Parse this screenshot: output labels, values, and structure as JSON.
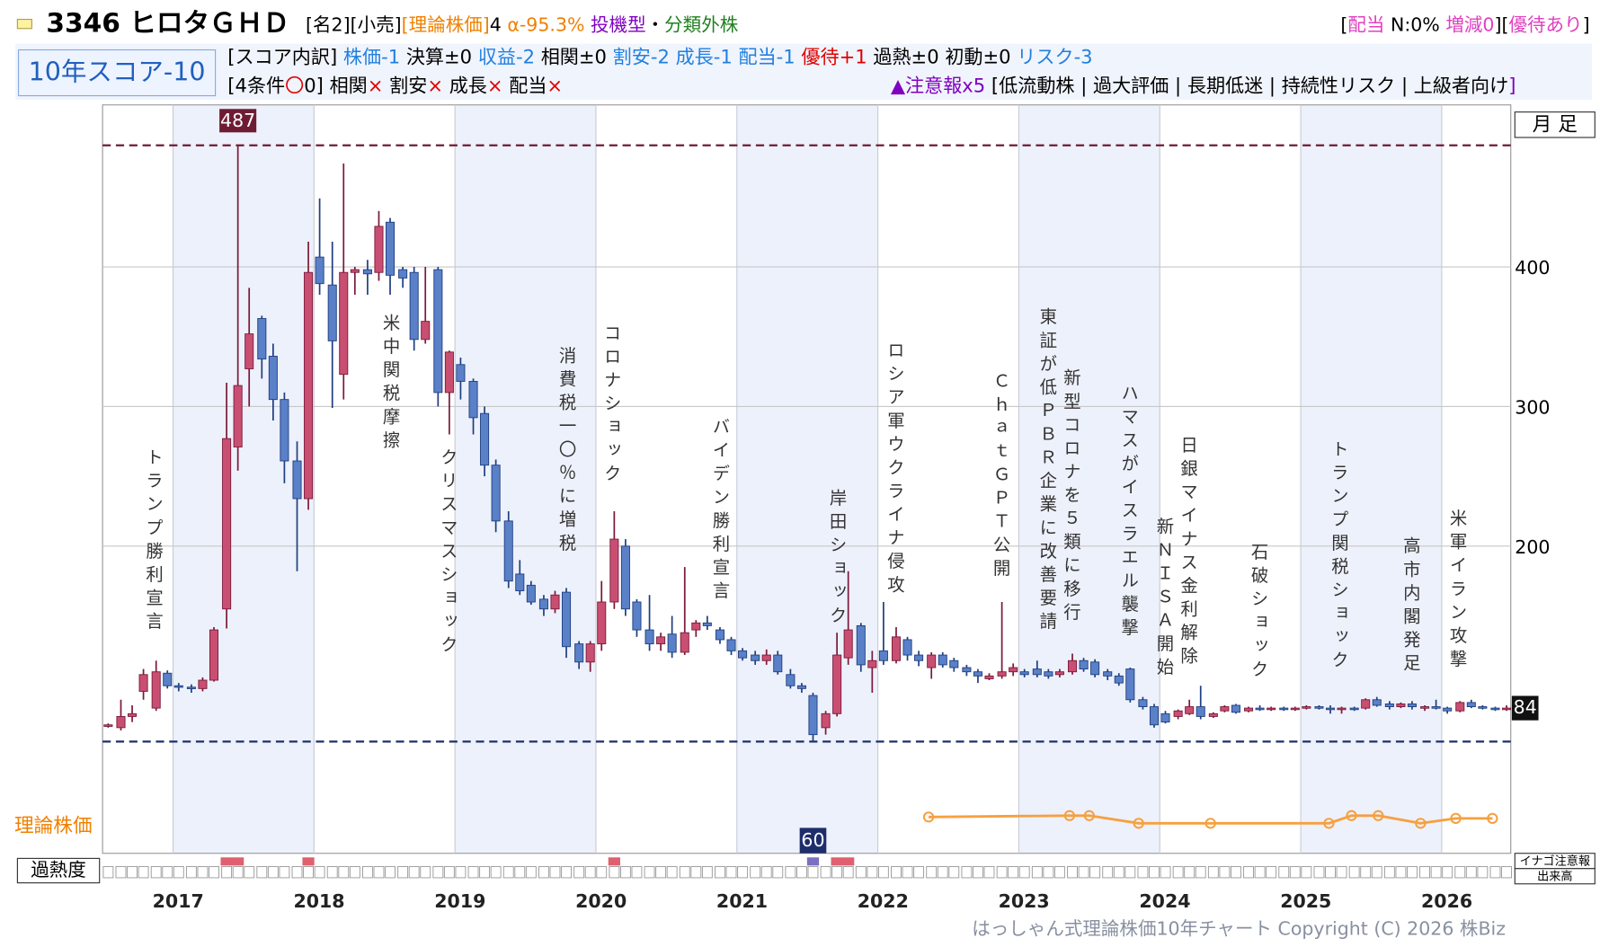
{
  "header": {
    "code_name": "3346 ヒロタＧＨＤ",
    "line1": [
      {
        "text": "[名2][小売]",
        "color": "#000000"
      },
      {
        "text": "[理論株価]",
        "color": "#f08000"
      },
      {
        "text": "4 ",
        "color": "#000000"
      },
      {
        "text": "α-95.3% ",
        "color": "#f08000"
      },
      {
        "text": "投機型",
        "color": "#8000c0"
      },
      {
        "text": "・",
        "color": "#000000"
      },
      {
        "text": "分類外株",
        "color": "#208020"
      }
    ],
    "right": [
      {
        "text": "[",
        "color": "#000000"
      },
      {
        "text": "配当",
        "color": "#e040c0"
      },
      {
        "text": " N:0% ",
        "color": "#000000"
      },
      {
        "text": "増減0",
        "color": "#e040c0"
      },
      {
        "text": "][",
        "color": "#000000"
      },
      {
        "text": "優待あり",
        "color": "#e040c0"
      },
      {
        "text": "]",
        "color": "#000000"
      }
    ],
    "score": "10年スコア-10",
    "breakdown": [
      {
        "text": "[スコア内訳] ",
        "color": "#000000"
      },
      {
        "text": "株価-1 ",
        "color": "#2080e0"
      },
      {
        "text": "決算±0 ",
        "color": "#000000"
      },
      {
        "text": "収益-2 ",
        "color": "#2080e0"
      },
      {
        "text": "相関±0 ",
        "color": "#000000"
      },
      {
        "text": "割安-2 ",
        "color": "#2080e0"
      },
      {
        "text": "成長-1 ",
        "color": "#2080e0"
      },
      {
        "text": "配当-1 ",
        "color": "#2080e0"
      },
      {
        "text": "優待+1 ",
        "color": "#e00000"
      },
      {
        "text": "過熱±0 ",
        "color": "#000000"
      },
      {
        "text": "初動±0 ",
        "color": "#000000"
      },
      {
        "text": "リスク-3",
        "color": "#2080e0"
      }
    ],
    "conditions": [
      {
        "text": "[4条件",
        "color": "#000000"
      },
      {
        "text": "〇",
        "color": "#e00000"
      },
      {
        "text": "0] 相関",
        "color": "#000000"
      },
      {
        "text": "×",
        "color": "#e00000"
      },
      {
        "text": " 割安",
        "color": "#000000"
      },
      {
        "text": "×",
        "color": "#e00000"
      },
      {
        "text": " 成長",
        "color": "#000000"
      },
      {
        "text": "×",
        "color": "#e00000"
      },
      {
        "text": " 配当",
        "color": "#000000"
      },
      {
        "text": "×",
        "color": "#e00000"
      }
    ],
    "alerts": [
      {
        "text": "▲注意報x5",
        "color": "#8000c0"
      },
      {
        "text": " [低流動株 | 過大評価 | 長期低迷 | 持続性リスク | 上級者向け",
        "color": "#000000"
      },
      {
        "text": "]",
        "color": "#8000c0"
      }
    ],
    "copyright": "はっしゃん式理論株価10年チャート Copyright (C) 2026 株Biz"
  },
  "chart_data": {
    "type": "candlestick",
    "period_label": "月 足",
    "xlim": [
      2016.5,
      2026.49
    ],
    "xticks": [
      2017,
      2018,
      2019,
      2020,
      2021,
      2022,
      2023,
      2024,
      2025,
      2026
    ],
    "ylim": [
      -20,
      516
    ],
    "yticks": [
      200,
      300,
      400
    ],
    "grid": true,
    "up_color": "#c94f72",
    "down_color": "#5a80c8",
    "max": 487,
    "min": 60,
    "last": 84,
    "max_color": "#6e1c34",
    "min_color": "#1e2e6c",
    "candles": {
      "x": [
        2016.54,
        2016.63,
        2016.71,
        2016.79,
        2016.88,
        2016.96,
        2017.04,
        2017.13,
        2017.21,
        2017.29,
        2017.38,
        2017.46,
        2017.54,
        2017.63,
        2017.71,
        2017.79,
        2017.88,
        2017.96,
        2018.04,
        2018.13,
        2018.21,
        2018.29,
        2018.38,
        2018.46,
        2018.54,
        2018.63,
        2018.71,
        2018.79,
        2018.88,
        2018.96,
        2019.04,
        2019.13,
        2019.21,
        2019.29,
        2019.38,
        2019.46,
        2019.54,
        2019.63,
        2019.71,
        2019.79,
        2019.88,
        2019.96,
        2020.04,
        2020.13,
        2020.21,
        2020.29,
        2020.38,
        2020.46,
        2020.54,
        2020.63,
        2020.71,
        2020.79,
        2020.88,
        2020.96,
        2021.04,
        2021.13,
        2021.21,
        2021.29,
        2021.38,
        2021.46,
        2021.54,
        2021.63,
        2021.71,
        2021.79,
        2021.88,
        2021.96,
        2022.04,
        2022.13,
        2022.21,
        2022.29,
        2022.38,
        2022.46,
        2022.54,
        2022.63,
        2022.71,
        2022.79,
        2022.88,
        2022.96,
        2023.04,
        2023.13,
        2023.21,
        2023.29,
        2023.38,
        2023.46,
        2023.54,
        2023.63,
        2023.71,
        2023.79,
        2023.88,
        2023.96,
        2024.04,
        2024.13,
        2024.21,
        2024.29,
        2024.38,
        2024.46,
        2024.54,
        2024.63,
        2024.71,
        2024.79,
        2024.88,
        2024.96,
        2025.04,
        2025.13,
        2025.21,
        2025.29,
        2025.38,
        2025.46,
        2025.54,
        2025.63,
        2025.71,
        2025.79,
        2025.88,
        2025.96,
        2026.04,
        2026.13,
        2026.21,
        2026.29,
        2026.38,
        2026.46
      ],
      "ohlc": [
        [
          71,
          73,
          70,
          72
        ],
        [
          70,
          90,
          68,
          78
        ],
        [
          78,
          86,
          74,
          80
        ],
        [
          96,
          112,
          90,
          108
        ],
        [
          84,
          118,
          82,
          110
        ],
        [
          109,
          111,
          98,
          100
        ],
        [
          100,
          102,
          96,
          99
        ],
        [
          99,
          101,
          95,
          98
        ],
        [
          98,
          106,
          96,
          104
        ],
        [
          104,
          142,
          103,
          140
        ],
        [
          155,
          317,
          141,
          277
        ],
        [
          271,
          487,
          254,
          315
        ],
        [
          327,
          385,
          300,
          352
        ],
        [
          363,
          365,
          320,
          334
        ],
        [
          336,
          345,
          290,
          305
        ],
        [
          305,
          310,
          245,
          261
        ],
        [
          261,
          275,
          182,
          234
        ],
        [
          234,
          418,
          226,
          396
        ],
        [
          407,
          449,
          380,
          388
        ],
        [
          387,
          418,
          299,
          347
        ],
        [
          323,
          474,
          305,
          396
        ],
        [
          396,
          400,
          380,
          398
        ],
        [
          398,
          405,
          380,
          395
        ],
        [
          396,
          440,
          390,
          429
        ],
        [
          432,
          435,
          380,
          394
        ],
        [
          398,
          400,
          385,
          392
        ],
        [
          396,
          400,
          340,
          348
        ],
        [
          348,
          400,
          345,
          361
        ],
        [
          398,
          400,
          300,
          310
        ],
        [
          310,
          340,
          280,
          339
        ],
        [
          330,
          335,
          305,
          318
        ],
        [
          318,
          320,
          280,
          292
        ],
        [
          295,
          300,
          250,
          258
        ],
        [
          258,
          262,
          210,
          218
        ],
        [
          218,
          225,
          170,
          175
        ],
        [
          180,
          190,
          165,
          168
        ],
        [
          172,
          175,
          158,
          160
        ],
        [
          162,
          165,
          150,
          155
        ],
        [
          155,
          168,
          152,
          165
        ],
        [
          167,
          170,
          120,
          128
        ],
        [
          130,
          132,
          112,
          117
        ],
        [
          117,
          132,
          110,
          130
        ],
        [
          130,
          175,
          125,
          160
        ],
        [
          160,
          225,
          155,
          205
        ],
        [
          200,
          205,
          150,
          155
        ],
        [
          160,
          162,
          135,
          140
        ],
        [
          140,
          165,
          125,
          130
        ],
        [
          130,
          138,
          125,
          135
        ],
        [
          137,
          150,
          120,
          124
        ],
        [
          124,
          185,
          122,
          138
        ],
        [
          140,
          147,
          135,
          145
        ],
        [
          145,
          150,
          140,
          143
        ],
        [
          140,
          142,
          130,
          133
        ],
        [
          133,
          135,
          122,
          125
        ],
        [
          125,
          127,
          118,
          120
        ],
        [
          122,
          125,
          115,
          118
        ],
        [
          118,
          126,
          115,
          122
        ],
        [
          122,
          125,
          108,
          110
        ],
        [
          108,
          112,
          98,
          100
        ],
        [
          100,
          102,
          95,
          98
        ],
        [
          93,
          95,
          60,
          65
        ],
        [
          70,
          82,
          65,
          80
        ],
        [
          80,
          138,
          78,
          122
        ],
        [
          120,
          182,
          115,
          140
        ],
        [
          143,
          145,
          110,
          115
        ],
        [
          113,
          125,
          95,
          118
        ],
        [
          125,
          160,
          115,
          118
        ],
        [
          118,
          142,
          116,
          135
        ],
        [
          133,
          135,
          118,
          122
        ],
        [
          122,
          125,
          114,
          118
        ],
        [
          113,
          124,
          105,
          122
        ],
        [
          122,
          124,
          113,
          115
        ],
        [
          118,
          120,
          110,
          113
        ],
        [
          113,
          115,
          107,
          110
        ],
        [
          110,
          112,
          102,
          107
        ],
        [
          105,
          109,
          104,
          107
        ],
        [
          107,
          160,
          105,
          110
        ],
        [
          110,
          116,
          107,
          113
        ],
        [
          110,
          112,
          106,
          108
        ],
        [
          112,
          118,
          106,
          108
        ],
        [
          110,
          112,
          105,
          107
        ],
        [
          108,
          112,
          106,
          110
        ],
        [
          110,
          123,
          108,
          118
        ],
        [
          118,
          120,
          110,
          112
        ],
        [
          117,
          119,
          106,
          108
        ],
        [
          110,
          112,
          104,
          107
        ],
        [
          107,
          109,
          100,
          102
        ],
        [
          112,
          113,
          88,
          90
        ],
        [
          90,
          92,
          83,
          85
        ],
        [
          85,
          87,
          70,
          72
        ],
        [
          80,
          82,
          73,
          74
        ],
        [
          78,
          83,
          76,
          82
        ],
        [
          80,
          90,
          79,
          85
        ],
        [
          85,
          100,
          76,
          78
        ],
        [
          78,
          81,
          77,
          80
        ],
        [
          82,
          86,
          81,
          85
        ],
        [
          86,
          87,
          80,
          81
        ],
        [
          82,
          85,
          81,
          84
        ],
        [
          84,
          86,
          82,
          83
        ],
        [
          83,
          85,
          82,
          84
        ],
        [
          84,
          85,
          82,
          83
        ],
        [
          83,
          85,
          82,
          84
        ],
        [
          84,
          86,
          83,
          85
        ],
        [
          85,
          86,
          83,
          84
        ],
        [
          84,
          86,
          80,
          83
        ],
        [
          83,
          85,
          80,
          84
        ],
        [
          84,
          85,
          82,
          83
        ],
        [
          84,
          91,
          83,
          90
        ],
        [
          90,
          92,
          85,
          86
        ],
        [
          87,
          89,
          83,
          85
        ],
        [
          85,
          88,
          84,
          87
        ],
        [
          87,
          89,
          83,
          85
        ],
        [
          84,
          86,
          82,
          85
        ],
        [
          85,
          90,
          83,
          84
        ],
        [
          84,
          85,
          80,
          82
        ],
        [
          82,
          89,
          81,
          88
        ],
        [
          88,
          90,
          84,
          85
        ],
        [
          85,
          86,
          83,
          84
        ],
        [
          84,
          85,
          82,
          83
        ],
        [
          83,
          86,
          82,
          84
        ]
      ]
    },
    "events": [
      {
        "text": "トランプ勝利宣言",
        "x": 2016.86
      },
      {
        "text": "米中関税摩擦",
        "x": 2018.54
      },
      {
        "text": "クリスマスショック",
        "x": 2018.95
      },
      {
        "text": "消費税一〇％に増税",
        "x": 2019.79
      },
      {
        "text": "コロナショック",
        "x": 2020.11
      },
      {
        "text": "バイデン勝利宣言",
        "x": 2020.88
      },
      {
        "text": "岸田ショック",
        "x": 2021.71
      },
      {
        "text": "ロシア軍ウクライナ侵攻",
        "x": 2022.12
      },
      {
        "text": "ＣｈａｔＧＰＴ公開",
        "x": 2022.87
      },
      {
        "text": "東証が低ＰＢＲ企業に改善要請",
        "x": 2023.2
      },
      {
        "text": "新型コロナを５類に移行",
        "x": 2023.37
      },
      {
        "text": "ハマスがイスラエル襲撃",
        "x": 2023.78
      },
      {
        "text": "新ＮＩＳＡ開始",
        "x": 2024.03
      },
      {
        "text": "日銀マイナス金利解除",
        "x": 2024.2
      },
      {
        "text": "石破ショック",
        "x": 2024.7
      },
      {
        "text": "トランプ関税ショック",
        "x": 2025.27
      },
      {
        "text": "高市内閣発足",
        "x": 2025.78
      },
      {
        "text": "米軍イラン攻撃",
        "x": 2026.11
      }
    ],
    "theory": {
      "name": "理論株価",
      "color": "#f6a040",
      "x": [
        2022.36,
        2023.36,
        2023.5,
        2023.85,
        2024.36,
        2025.2,
        2025.36,
        2025.55,
        2025.85,
        2026.1,
        2026.36
      ],
      "values": [
        6,
        7,
        7,
        1.5,
        1.5,
        1.5,
        7,
        7,
        1.5,
        5,
        5
      ]
    },
    "overheat": {
      "name": "過熱度",
      "hot_color": "#e06070",
      "cold_color": "#7a6fc0",
      "hot_x": [
        2017.38,
        2017.46,
        2017.96,
        2020.13,
        2021.71,
        2021.79
      ],
      "cold_x": [
        2021.54
      ]
    },
    "side_labels": [
      "イナゴ注意報",
      "出来高"
    ]
  }
}
